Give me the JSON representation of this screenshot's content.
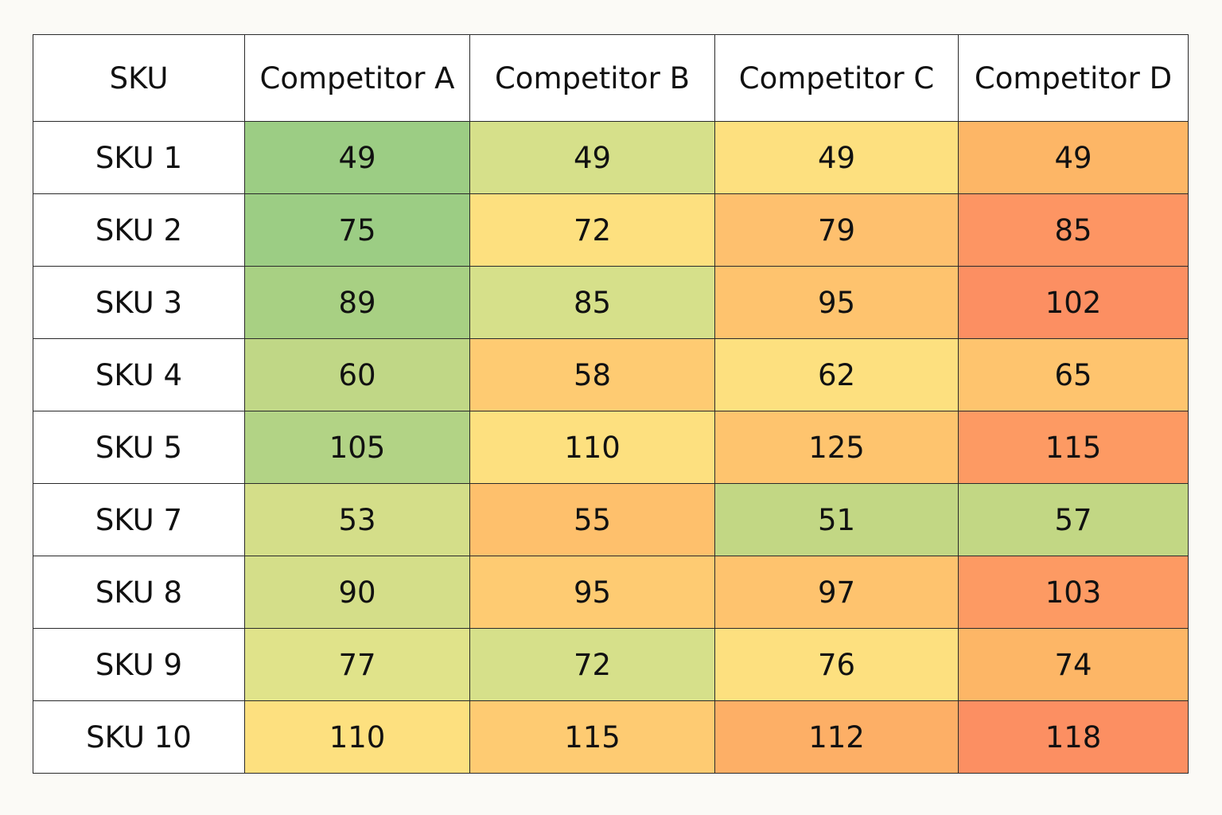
{
  "chart_data": {
    "type": "table",
    "corner_label": "SKU",
    "columns": [
      "Competitor A",
      "Competitor B",
      "Competitor C",
      "Competitor D"
    ],
    "rows": [
      {
        "label": "SKU 1",
        "values": [
          49,
          49,
          49,
          49
        ],
        "colors": [
          "#9ccd84",
          "#d6e08a",
          "#fde07f",
          "#fdb666"
        ]
      },
      {
        "label": "SKU 2",
        "values": [
          75,
          72,
          79,
          85
        ],
        "colors": [
          "#9ccd84",
          "#fde07f",
          "#fec06e",
          "#fd9563"
        ]
      },
      {
        "label": "SKU 3",
        "values": [
          89,
          85,
          95,
          102
        ],
        "colors": [
          "#a8d083",
          "#d6e08a",
          "#fec36e",
          "#fc8f62"
        ]
      },
      {
        "label": "SKU 4",
        "values": [
          60,
          58,
          62,
          65
        ],
        "colors": [
          "#c0d786",
          "#fecb72",
          "#fde07f",
          "#fec46e"
        ]
      },
      {
        "label": "SKU 5",
        "values": [
          105,
          110,
          125,
          115
        ],
        "colors": [
          "#b2d385",
          "#fde07f",
          "#fec46e",
          "#fd9a63"
        ]
      },
      {
        "label": "SKU 7",
        "values": [
          53,
          55,
          51,
          57
        ],
        "colors": [
          "#d4de89",
          "#fec06c",
          "#c2d784",
          "#c2d784"
        ]
      },
      {
        "label": "SKU 8",
        "values": [
          90,
          95,
          97,
          103
        ],
        "colors": [
          "#d4de89",
          "#fecb72",
          "#fec36e",
          "#fd9a63"
        ]
      },
      {
        "label": "SKU 9",
        "values": [
          77,
          72,
          76,
          74
        ],
        "colors": [
          "#e0e38a",
          "#d6e08a",
          "#fde07f",
          "#fdb666"
        ]
      },
      {
        "label": "SKU 10",
        "values": [
          110,
          115,
          112,
          118
        ],
        "colors": [
          "#fde07f",
          "#fecb72",
          "#fdaf66",
          "#fc8f62"
        ]
      }
    ]
  }
}
